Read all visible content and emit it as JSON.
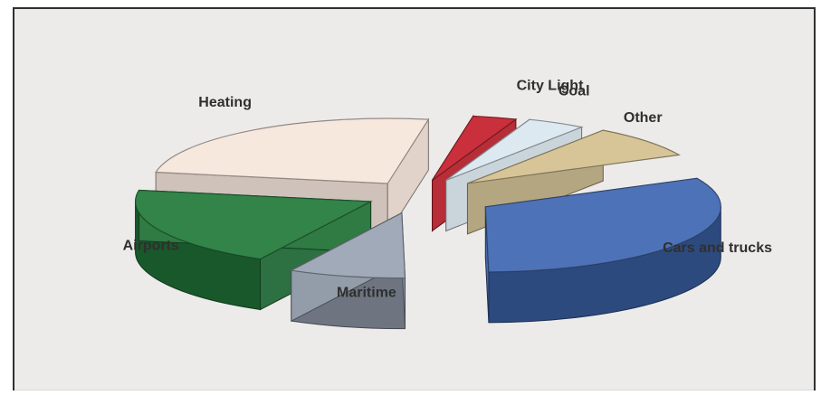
{
  "chart_data": {
    "type": "pie",
    "style": "exploded 3D pie",
    "title": "",
    "legend": "none",
    "labels_on_chart": true,
    "background_color": "#ecebea",
    "slices": [
      {
        "label": "Cars and trucks",
        "value": 32,
        "color": "#3f67b1"
      },
      {
        "label": "Maritime",
        "value": 8,
        "color": "#99a3b3"
      },
      {
        "label": "Airports",
        "value": 20,
        "color": "#217a3a"
      },
      {
        "label": "Heating",
        "value": 25,
        "color": "#f7e6db"
      },
      {
        "label": "City Light",
        "value": 3,
        "color": "#c51f2b"
      },
      {
        "label": "Coal",
        "value": 4,
        "color": "#dbe8f0"
      },
      {
        "label": "Other",
        "value": 8,
        "color": "#d4c190"
      }
    ]
  }
}
